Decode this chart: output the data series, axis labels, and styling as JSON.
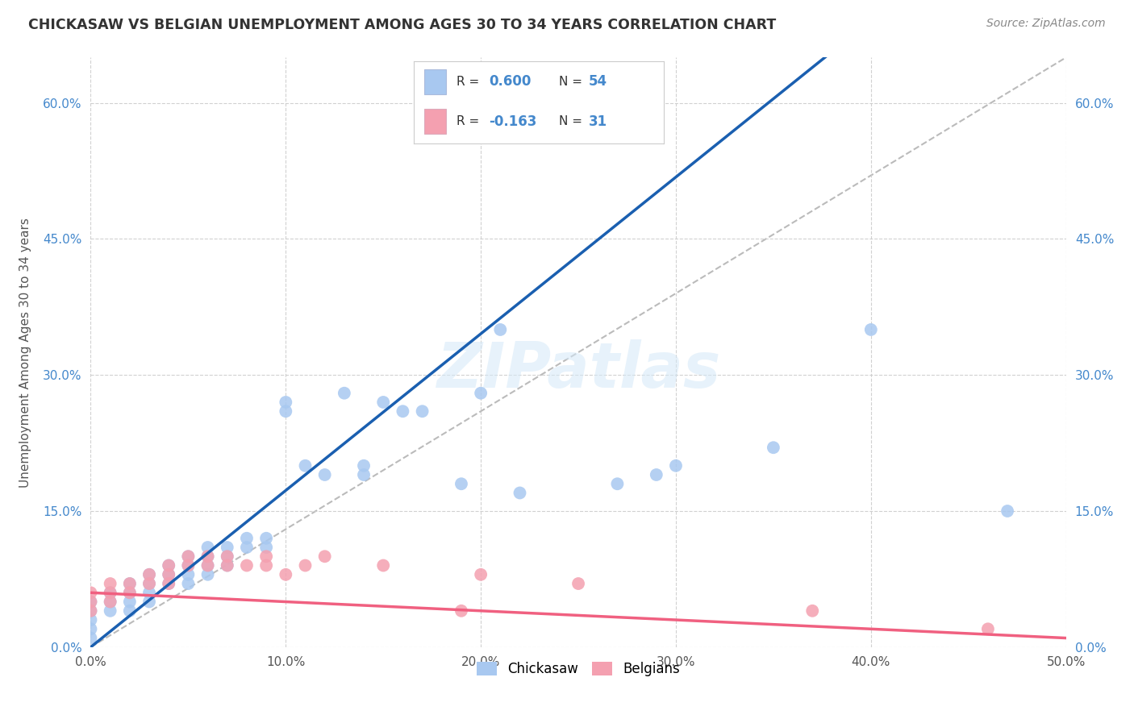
{
  "title": "CHICKASAW VS BELGIAN UNEMPLOYMENT AMONG AGES 30 TO 34 YEARS CORRELATION CHART",
  "source": "Source: ZipAtlas.com",
  "ylabel": "Unemployment Among Ages 30 to 34 years",
  "xlim": [
    0.0,
    0.5
  ],
  "ylim": [
    0.0,
    0.65
  ],
  "x_ticks": [
    0.0,
    0.1,
    0.2,
    0.3,
    0.4,
    0.5
  ],
  "x_tick_labels": [
    "0.0%",
    "10.0%",
    "20.0%",
    "30.0%",
    "40.0%",
    "50.0%"
  ],
  "y_ticks": [
    0.0,
    0.15,
    0.3,
    0.45,
    0.6
  ],
  "y_tick_labels": [
    "0.0%",
    "15.0%",
    "30.0%",
    "45.0%",
    "60.0%"
  ],
  "chickasaw_color": "#a8c8f0",
  "belgian_color": "#f4a0b0",
  "chickasaw_line_color": "#1a5fb0",
  "belgian_line_color": "#f06080",
  "diagonal_color": "#bbbbbb",
  "watermark": "ZIPatlas",
  "background_color": "#ffffff",
  "chickasaw_line_x0": 0.0,
  "chickasaw_line_y0": 0.0,
  "chickasaw_line_x1": 0.22,
  "chickasaw_line_y1": 0.38,
  "belgian_line_x0": 0.0,
  "belgian_line_y0": 0.06,
  "belgian_line_x1": 0.5,
  "belgian_line_y1": 0.01,
  "chickasaw_x": [
    0.0,
    0.0,
    0.0,
    0.0,
    0.0,
    0.01,
    0.01,
    0.01,
    0.02,
    0.02,
    0.02,
    0.02,
    0.03,
    0.03,
    0.03,
    0.03,
    0.04,
    0.04,
    0.04,
    0.05,
    0.05,
    0.05,
    0.05,
    0.06,
    0.06,
    0.06,
    0.06,
    0.07,
    0.07,
    0.07,
    0.08,
    0.08,
    0.09,
    0.09,
    0.1,
    0.1,
    0.11,
    0.12,
    0.13,
    0.14,
    0.14,
    0.15,
    0.16,
    0.17,
    0.19,
    0.2,
    0.21,
    0.22,
    0.27,
    0.29,
    0.3,
    0.35,
    0.4,
    0.47
  ],
  "chickasaw_y": [
    0.05,
    0.04,
    0.03,
    0.02,
    0.01,
    0.06,
    0.05,
    0.04,
    0.07,
    0.06,
    0.05,
    0.04,
    0.08,
    0.07,
    0.06,
    0.05,
    0.09,
    0.08,
    0.07,
    0.1,
    0.09,
    0.08,
    0.07,
    0.11,
    0.1,
    0.09,
    0.08,
    0.11,
    0.1,
    0.09,
    0.12,
    0.11,
    0.12,
    0.11,
    0.27,
    0.26,
    0.2,
    0.19,
    0.28,
    0.2,
    0.19,
    0.27,
    0.26,
    0.26,
    0.18,
    0.28,
    0.35,
    0.17,
    0.18,
    0.19,
    0.2,
    0.22,
    0.35,
    0.15
  ],
  "belgian_x": [
    0.0,
    0.0,
    0.0,
    0.01,
    0.01,
    0.01,
    0.02,
    0.02,
    0.03,
    0.03,
    0.04,
    0.04,
    0.04,
    0.05,
    0.05,
    0.06,
    0.06,
    0.07,
    0.07,
    0.08,
    0.09,
    0.09,
    0.1,
    0.11,
    0.12,
    0.15,
    0.19,
    0.2,
    0.25,
    0.37,
    0.46
  ],
  "belgian_y": [
    0.06,
    0.05,
    0.04,
    0.07,
    0.06,
    0.05,
    0.07,
    0.06,
    0.08,
    0.07,
    0.09,
    0.08,
    0.07,
    0.1,
    0.09,
    0.1,
    0.09,
    0.1,
    0.09,
    0.09,
    0.1,
    0.09,
    0.08,
    0.09,
    0.1,
    0.09,
    0.04,
    0.08,
    0.07,
    0.04,
    0.02
  ]
}
